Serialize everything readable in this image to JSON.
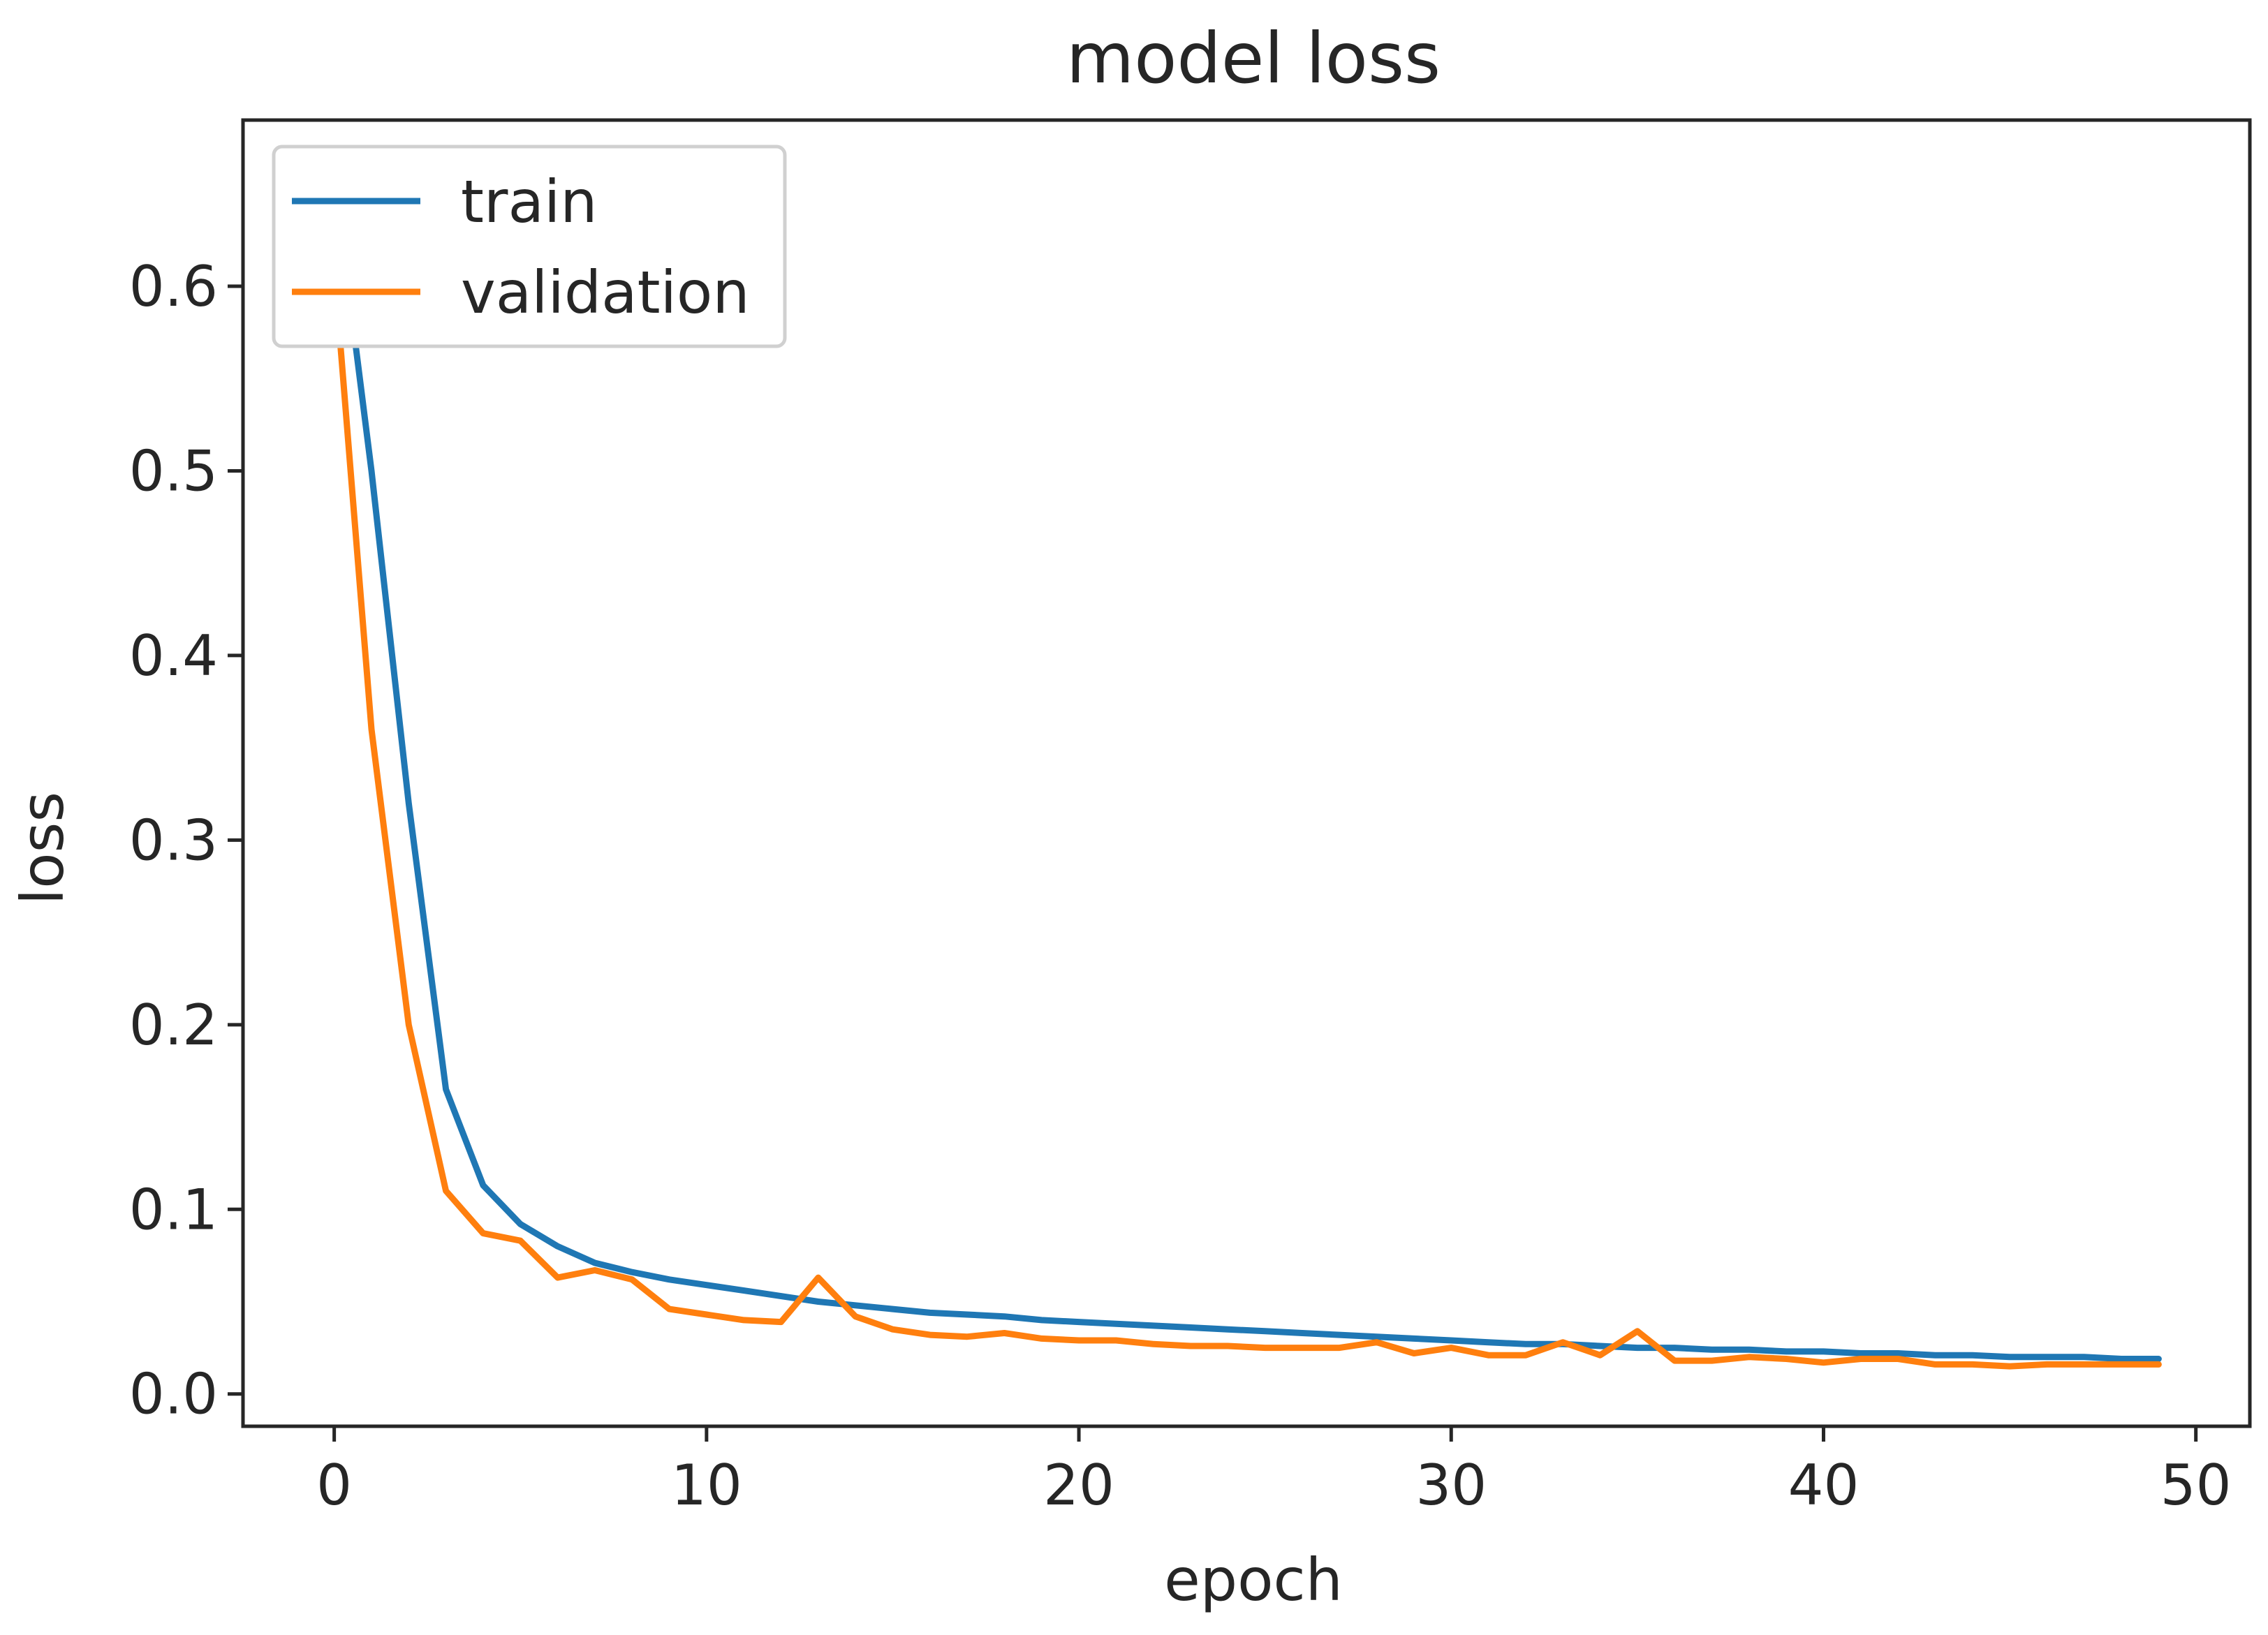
{
  "chart_data": {
    "type": "line",
    "title": "model loss",
    "xlabel": "epoch",
    "ylabel": "loss",
    "xlim": [
      -2.45,
      51.45
    ],
    "ylim": [
      -0.0175,
      0.69
    ],
    "xticks": [
      0,
      10,
      20,
      30,
      40,
      50
    ],
    "yticks": [
      0.0,
      0.1,
      0.2,
      0.3,
      0.4,
      0.5,
      0.6
    ],
    "ytick_labels": [
      "0.0",
      "0.1",
      "0.2",
      "0.3",
      "0.4",
      "0.5",
      "0.6"
    ],
    "xtick_labels": [
      "0",
      "10",
      "20",
      "30",
      "40",
      "50"
    ],
    "legend_position": "upper-left",
    "grid": false,
    "x": [
      0,
      1,
      2,
      3,
      4,
      5,
      6,
      7,
      8,
      9,
      10,
      11,
      12,
      13,
      14,
      15,
      16,
      17,
      18,
      19,
      20,
      21,
      22,
      23,
      24,
      25,
      26,
      27,
      28,
      29,
      30,
      31,
      32,
      33,
      34,
      35,
      36,
      37,
      38,
      39,
      40,
      41,
      42,
      43,
      44,
      45,
      46,
      47,
      48,
      49
    ],
    "series": [
      {
        "name": "train",
        "color": "#1f77b4",
        "values": [
          0.66,
          0.5,
          0.32,
          0.165,
          0.113,
          0.092,
          0.08,
          0.071,
          0.066,
          0.062,
          0.059,
          0.056,
          0.053,
          0.05,
          0.048,
          0.046,
          0.044,
          0.043,
          0.042,
          0.04,
          0.039,
          0.038,
          0.037,
          0.036,
          0.035,
          0.034,
          0.033,
          0.032,
          0.031,
          0.03,
          0.029,
          0.028,
          0.027,
          0.027,
          0.026,
          0.025,
          0.025,
          0.024,
          0.024,
          0.023,
          0.023,
          0.022,
          0.022,
          0.021,
          0.021,
          0.02,
          0.02,
          0.02,
          0.019,
          0.019
        ]
      },
      {
        "name": "validation",
        "color": "#ff7f0e",
        "values": [
          0.61,
          0.36,
          0.2,
          0.11,
          0.087,
          0.083,
          0.063,
          0.067,
          0.062,
          0.046,
          0.043,
          0.04,
          0.039,
          0.063,
          0.042,
          0.035,
          0.032,
          0.031,
          0.033,
          0.03,
          0.029,
          0.029,
          0.027,
          0.026,
          0.026,
          0.025,
          0.025,
          0.025,
          0.028,
          0.022,
          0.025,
          0.021,
          0.021,
          0.028,
          0.021,
          0.034,
          0.018,
          0.018,
          0.02,
          0.019,
          0.017,
          0.019,
          0.019,
          0.016,
          0.016,
          0.015,
          0.016,
          0.016,
          0.016,
          0.016
        ]
      }
    ]
  }
}
